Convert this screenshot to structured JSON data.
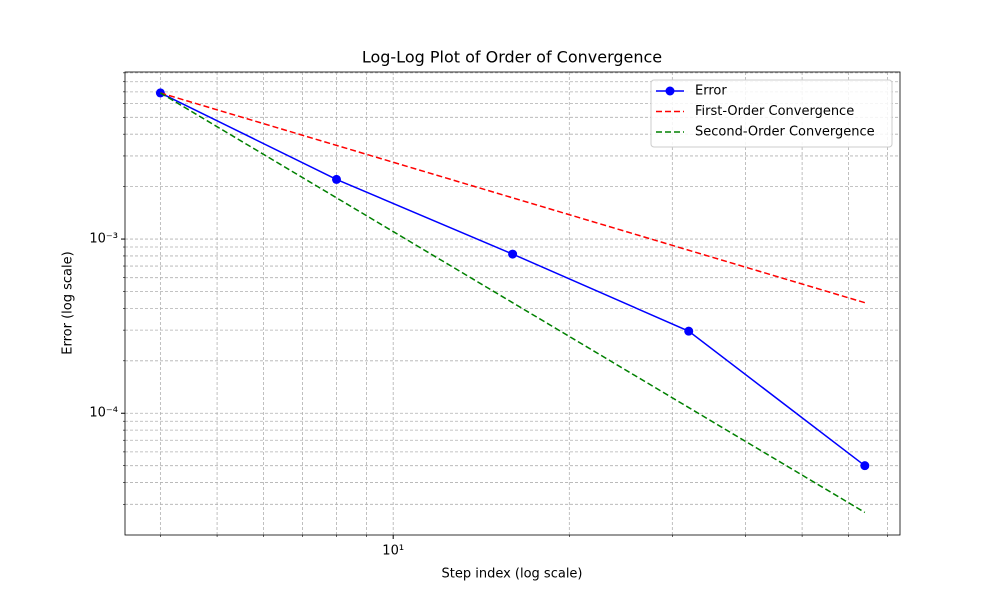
{
  "chart_data": {
    "type": "line",
    "title": "Log-Log Plot of Order of Convergence",
    "x_label": "Step index (log scale)",
    "y_label": "Error (log scale)",
    "x": [
      4,
      8,
      16,
      32,
      64
    ],
    "series": [
      {
        "name": "Error",
        "color": "#0000ff",
        "style": "solid",
        "marker": true,
        "values": [
          0.0069,
          0.0022,
          0.00082,
          0.000296,
          5e-05
        ]
      },
      {
        "name": "First-Order Convergence",
        "color": "#ff0000",
        "style": "dashed",
        "marker": false,
        "values": [
          0.0069,
          0.00345,
          0.001725,
          0.0008625,
          0.00043125
        ]
      },
      {
        "name": "Second-Order Convergence",
        "color": "#008000",
        "style": "dashed",
        "marker": false,
        "values": [
          0.0069,
          0.001725,
          0.00043125,
          0.0001078,
          2.695e-05
        ]
      }
    ],
    "xlog": true,
    "ylog": true,
    "xlim": [
      3.48,
      73.5
    ],
    "ylim": [
      2e-05,
      0.0091
    ],
    "xticks": [
      {
        "value": 10,
        "label": "10¹"
      }
    ],
    "xminor": [
      4,
      5,
      6,
      7,
      8,
      9,
      20,
      30,
      40,
      50,
      60,
      70
    ],
    "yticks": [
      {
        "value": 0.0001,
        "label": "10⁻⁴"
      },
      {
        "value": 0.001,
        "label": "10⁻³"
      }
    ],
    "yminor": [
      3e-05,
      4e-05,
      5e-05,
      6e-05,
      7e-05,
      8e-05,
      9e-05,
      0.0002,
      0.0003,
      0.0004,
      0.0005,
      0.0006,
      0.0007,
      0.0008,
      0.0009,
      0.002,
      0.003,
      0.004,
      0.005,
      0.006,
      0.007,
      0.008,
      0.009
    ],
    "grid": true,
    "legend": "upper right"
  }
}
